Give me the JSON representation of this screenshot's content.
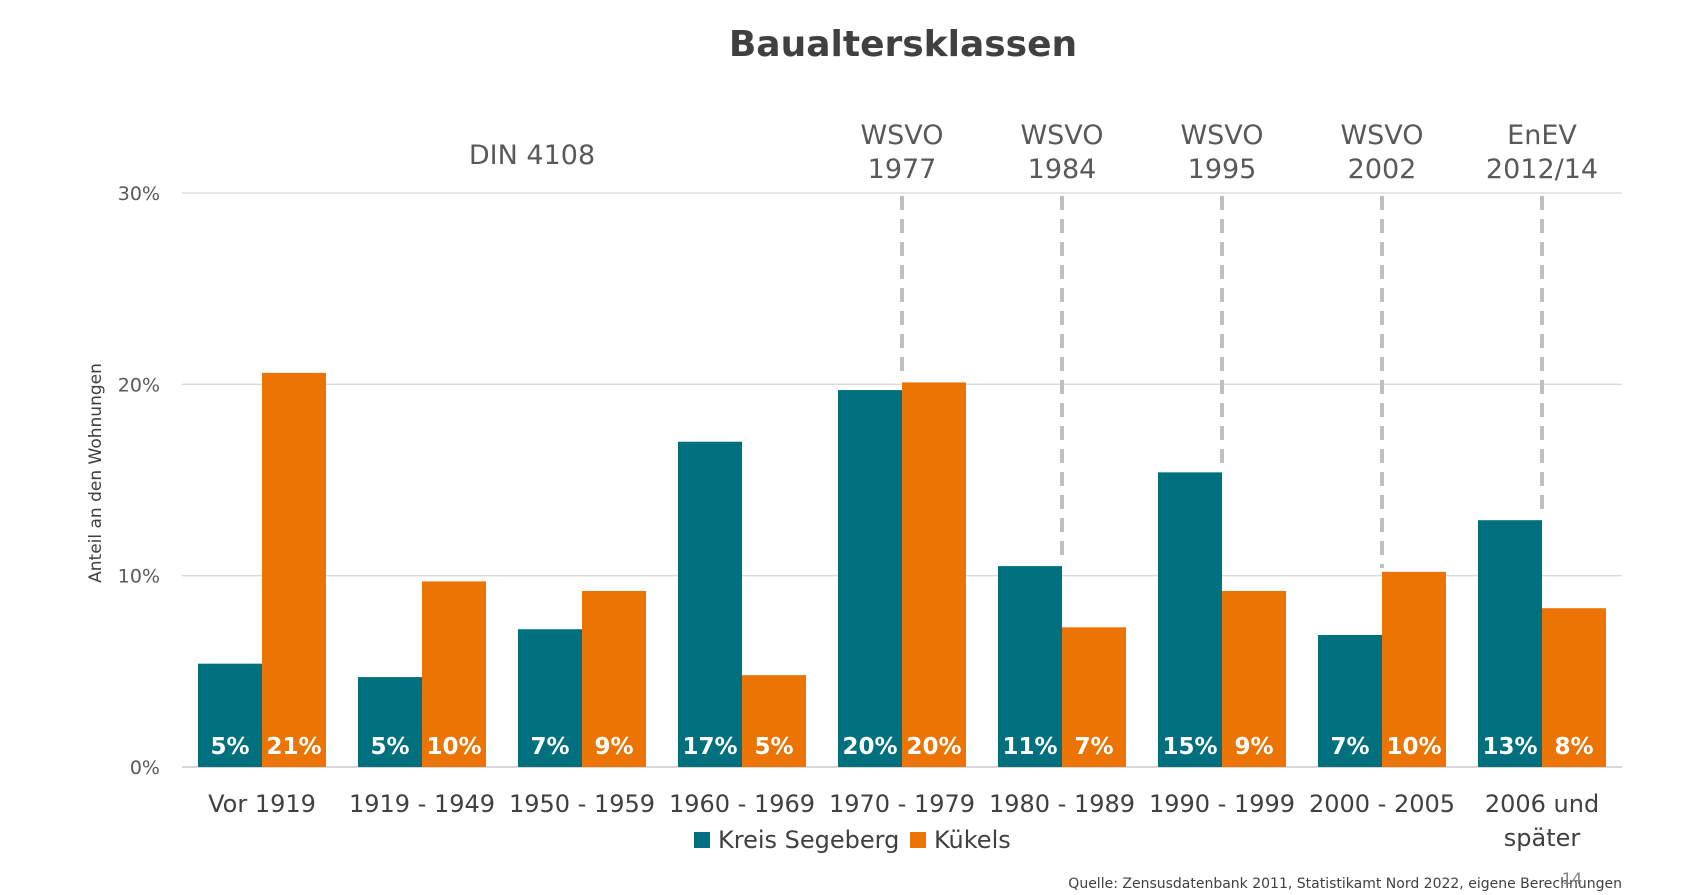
{
  "chart_data": {
    "type": "bar",
    "title": "Baualtersklassen",
    "xlabel": "",
    "ylabel": "Anteil an den Wohnungen",
    "ylim": [
      0,
      30
    ],
    "yticks": [
      "0%",
      "10%",
      "20%",
      "30%"
    ],
    "yticks_values": [
      0,
      10,
      20,
      30
    ],
    "grid": true,
    "legend_position": "bottom",
    "categories": [
      [
        "Vor 1919"
      ],
      [
        "1919 - 1949"
      ],
      [
        "1950 - 1959"
      ],
      [
        "1960 - 1969"
      ],
      [
        "1970 - 1979"
      ],
      [
        "1980 - 1989"
      ],
      [
        "1990 - 1999"
      ],
      [
        "2000 - 2005"
      ],
      [
        "2006 und",
        "später"
      ]
    ],
    "series": [
      {
        "name": "Kreis Segeberg",
        "color": "#00707f",
        "values": [
          5.4,
          4.7,
          7.2,
          17.0,
          19.7,
          10.5,
          15.4,
          6.9,
          12.9
        ],
        "labels": [
          "5%",
          "5%",
          "7%",
          "17%",
          "20%",
          "11%",
          "15%",
          "7%",
          "13%"
        ]
      },
      {
        "name": "Kükels",
        "color": "#ec7404",
        "values": [
          20.6,
          9.7,
          9.2,
          4.8,
          20.1,
          7.3,
          9.2,
          10.2,
          8.3
        ],
        "labels": [
          "21%",
          "10%",
          "9%",
          "5%",
          "20%",
          "7%",
          "9%",
          "10%",
          "8%"
        ]
      }
    ],
    "annotations": [
      {
        "lines": [
          "DIN 4108"
        ],
        "category_index": null,
        "dashed_line": false
      },
      {
        "lines": [
          "WSVO",
          "1977"
        ],
        "category_index": 4,
        "dashed_line": true
      },
      {
        "lines": [
          "WSVO",
          "1984"
        ],
        "category_index": 5,
        "dashed_line": true
      },
      {
        "lines": [
          "WSVO",
          "1995"
        ],
        "category_index": 6,
        "dashed_line": true
      },
      {
        "lines": [
          "WSVO",
          "2002"
        ],
        "category_index": 7,
        "dashed_line": true
      },
      {
        "lines": [
          "EnEV",
          "2012/14"
        ],
        "category_index": 8,
        "dashed_line": true
      }
    ],
    "source": "Quelle: Zensusdatenbank 2011, Statistikamt Nord 2022, eigene Berechnungen",
    "page_number": "14"
  }
}
